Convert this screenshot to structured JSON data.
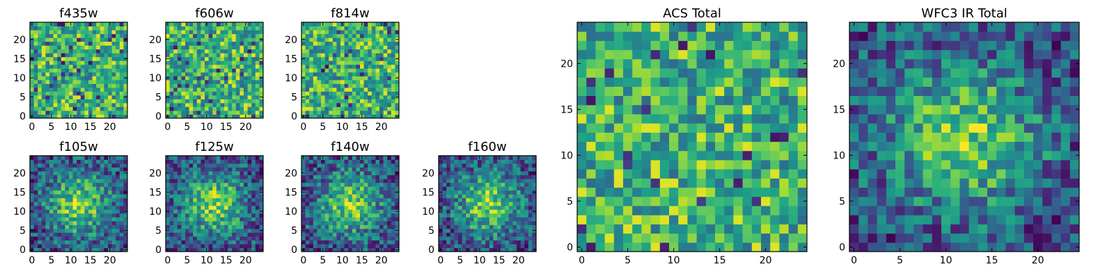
{
  "figure": {
    "description_note": ""
  },
  "chart_data": [
    {
      "type": "heatmap",
      "title": "f435w",
      "grid": 25,
      "xticks": [
        0,
        5,
        10,
        15,
        20
      ],
      "yticks": [
        0,
        5,
        10,
        15,
        20
      ],
      "colormap": "viridis",
      "pattern": "noise",
      "seed": 11
    },
    {
      "type": "heatmap",
      "title": "f606w",
      "grid": 25,
      "xticks": [
        0,
        5,
        10,
        15,
        20
      ],
      "yticks": [
        0,
        5,
        10,
        15,
        20
      ],
      "colormap": "viridis",
      "pattern": "noise",
      "seed": 23
    },
    {
      "type": "heatmap",
      "title": "f814w",
      "grid": 25,
      "xticks": [
        0,
        5,
        10,
        15,
        20
      ],
      "yticks": [
        0,
        5,
        10,
        15,
        20
      ],
      "colormap": "viridis",
      "pattern": "noise",
      "seed": 37
    },
    {
      "type": "heatmap",
      "title": "f105w",
      "grid": 25,
      "xticks": [
        0,
        5,
        10,
        15,
        20
      ],
      "yticks": [
        0,
        5,
        10,
        15,
        20
      ],
      "colormap": "viridis",
      "pattern": "blob",
      "peak": [
        12,
        12
      ],
      "seed": 41
    },
    {
      "type": "heatmap",
      "title": "f125w",
      "grid": 25,
      "xticks": [
        0,
        5,
        10,
        15,
        20
      ],
      "yticks": [
        0,
        5,
        10,
        15,
        20
      ],
      "colormap": "viridis",
      "pattern": "blob",
      "peak": [
        12,
        12
      ],
      "seed": 53
    },
    {
      "type": "heatmap",
      "title": "f140w",
      "grid": 25,
      "xticks": [
        0,
        5,
        10,
        15,
        20
      ],
      "yticks": [
        0,
        5,
        10,
        15,
        20
      ],
      "colormap": "viridis",
      "pattern": "blob",
      "peak": [
        12,
        12
      ],
      "seed": 67
    },
    {
      "type": "heatmap",
      "title": "f160w",
      "grid": 25,
      "xticks": [
        0,
        5,
        10,
        15,
        20
      ],
      "yticks": [
        0,
        5,
        10,
        15,
        20
      ],
      "colormap": "viridis",
      "pattern": "blob",
      "peak": [
        12,
        12
      ],
      "seed": 79
    },
    {
      "type": "heatmap",
      "title": "ACS Total",
      "grid": 25,
      "xticks": [
        0,
        5,
        10,
        15,
        20
      ],
      "yticks": [
        0,
        5,
        10,
        15,
        20
      ],
      "colormap": "viridis",
      "pattern": "noise",
      "seed": 97
    },
    {
      "type": "heatmap",
      "title": "WFC3 IR Total",
      "grid": 25,
      "xticks": [
        0,
        5,
        10,
        15,
        20
      ],
      "yticks": [
        0,
        5,
        10,
        15,
        20
      ],
      "colormap": "viridis",
      "pattern": "blob",
      "peak": [
        12,
        12
      ],
      "seed": 131
    }
  ]
}
